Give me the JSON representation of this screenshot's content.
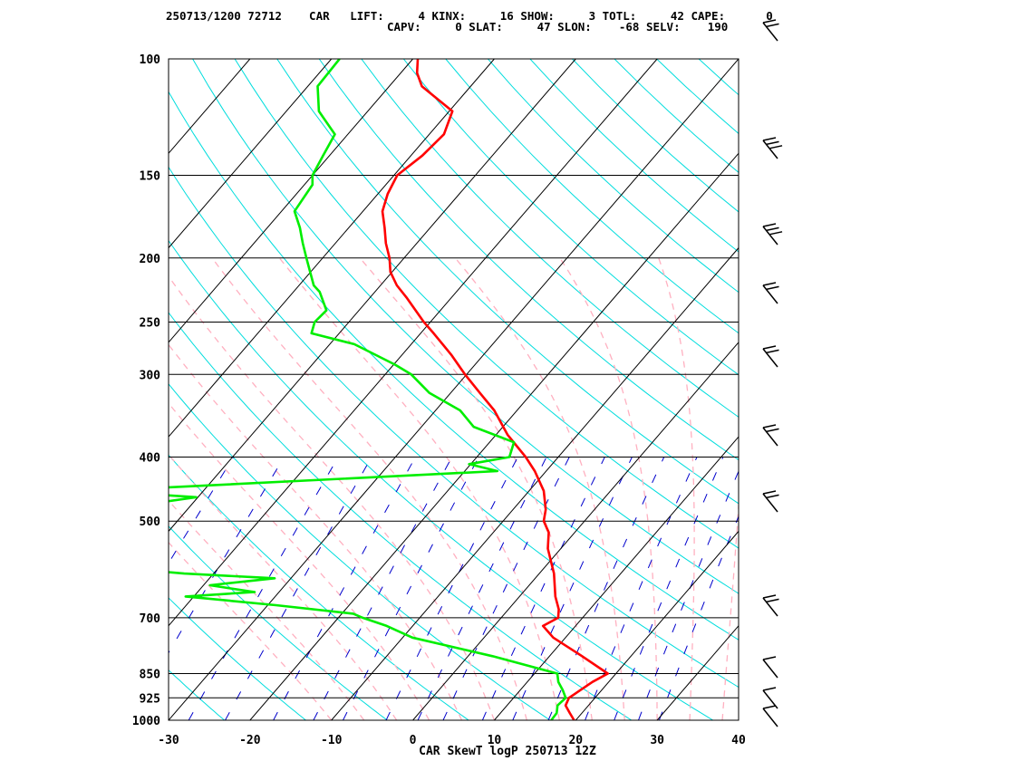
{
  "header": {
    "line1": "250713/1200 72712    CAR   LIFT:     4 KINX:     16 SHOW:     3 TOTL:     42 CAPE:      0",
    "line2": "CAPV:     0 SLAT:     47 SLON:    -68 SELV:    190"
  },
  "colors": {
    "temperature": "#ff0000",
    "dewpoint": "#00ee00",
    "isotherm": "#000000",
    "dry_adiabat": "#00dddd",
    "moist_adiabat": "#ffb0c0",
    "mixing_ratio": "#0000cc",
    "isobar": "#000000"
  },
  "chart_data": {
    "type": "line",
    "title": "CAR SkewT logP 250713 12Z",
    "xlabel": "",
    "ylabel": "",
    "xlim": [
      -30,
      40
    ],
    "ylim": [
      1000,
      100
    ],
    "y_scale": "log",
    "skewed": true,
    "x_ticks": [
      -30,
      -20,
      -10,
      0,
      10,
      20,
      30,
      40
    ],
    "y_ticks": [
      100,
      150,
      200,
      250,
      300,
      400,
      500,
      700,
      850,
      925,
      1000
    ],
    "grid": true,
    "series": [
      {
        "variable": "temperature",
        "color": "#ff0000",
        "points": [
          [
            1000,
            19.8
          ],
          [
            975,
            18.5
          ],
          [
            950,
            17.2
          ],
          [
            925,
            16.8
          ],
          [
            900,
            17.4
          ],
          [
            875,
            18.0
          ],
          [
            850,
            19.0
          ],
          [
            800,
            14.0
          ],
          [
            750,
            8.5
          ],
          [
            720,
            6.0
          ],
          [
            700,
            7.0
          ],
          [
            680,
            6.2
          ],
          [
            650,
            4.4
          ],
          [
            600,
            1.8
          ],
          [
            550,
            -1.6
          ],
          [
            520,
            -3.2
          ],
          [
            500,
            -5.0
          ],
          [
            480,
            -6.0
          ],
          [
            450,
            -8.2
          ],
          [
            420,
            -11.4
          ],
          [
            400,
            -14.0
          ],
          [
            370,
            -18.6
          ],
          [
            340,
            -22.8
          ],
          [
            320,
            -26.4
          ],
          [
            300,
            -30.2
          ],
          [
            280,
            -34.0
          ],
          [
            260,
            -38.4
          ],
          [
            250,
            -40.8
          ],
          [
            230,
            -45.4
          ],
          [
            220,
            -48.0
          ],
          [
            210,
            -50.2
          ],
          [
            200,
            -51.8
          ],
          [
            190,
            -53.8
          ],
          [
            180,
            -55.6
          ],
          [
            170,
            -57.6
          ],
          [
            160,
            -58.8
          ],
          [
            150,
            -59.6
          ],
          [
            140,
            -58.6
          ],
          [
            130,
            -58.2
          ],
          [
            120,
            -59.6
          ],
          [
            110,
            -66.0
          ],
          [
            105,
            -68.0
          ],
          [
            100,
            -69.4
          ]
        ]
      },
      {
        "variable": "dewpoint",
        "color": "#00ee00",
        "points": [
          [
            1000,
            17.0
          ],
          [
            975,
            16.9
          ],
          [
            950,
            16.2
          ],
          [
            925,
            16.4
          ],
          [
            900,
            15.2
          ],
          [
            875,
            13.8
          ],
          [
            850,
            12.8
          ],
          [
            800,
            3.0
          ],
          [
            750,
            -8.8
          ],
          [
            720,
            -13.2
          ],
          [
            700,
            -17.0
          ],
          [
            690,
            -18.6
          ],
          [
            670,
            -29.0
          ],
          [
            650,
            -41.0
          ],
          [
            640,
            -33.0
          ],
          [
            625,
            -39.2
          ],
          [
            610,
            -32.0
          ],
          [
            600,
            -43.6
          ],
          [
            570,
            -65.0
          ],
          [
            550,
            -61.8
          ],
          [
            540,
            -63.0
          ],
          [
            530,
            -58.6
          ],
          [
            520,
            -53.8
          ],
          [
            500,
            -56.4
          ],
          [
            490,
            -63.8
          ],
          [
            460,
            -50.2
          ],
          [
            450,
            -63.0
          ],
          [
            420,
            -16.0
          ],
          [
            410,
            -20.2
          ],
          [
            400,
            -16.0
          ],
          [
            380,
            -17.0
          ],
          [
            360,
            -23.6
          ],
          [
            340,
            -27.0
          ],
          [
            320,
            -32.6
          ],
          [
            300,
            -36.8
          ],
          [
            290,
            -39.8
          ],
          [
            270,
            -47.0
          ],
          [
            260,
            -53.4
          ],
          [
            250,
            -54.2
          ],
          [
            240,
            -54.0
          ],
          [
            225,
            -56.8
          ],
          [
            220,
            -58.2
          ],
          [
            200,
            -62.0
          ],
          [
            190,
            -64.0
          ],
          [
            180,
            -66.0
          ],
          [
            170,
            -68.4
          ],
          [
            155,
            -69.0
          ],
          [
            150,
            -70.0
          ],
          [
            140,
            -70.8
          ],
          [
            130,
            -71.6
          ],
          [
            120,
            -76.0
          ],
          [
            110,
            -78.8
          ],
          [
            100,
            -79.0
          ]
        ]
      }
    ]
  }
}
